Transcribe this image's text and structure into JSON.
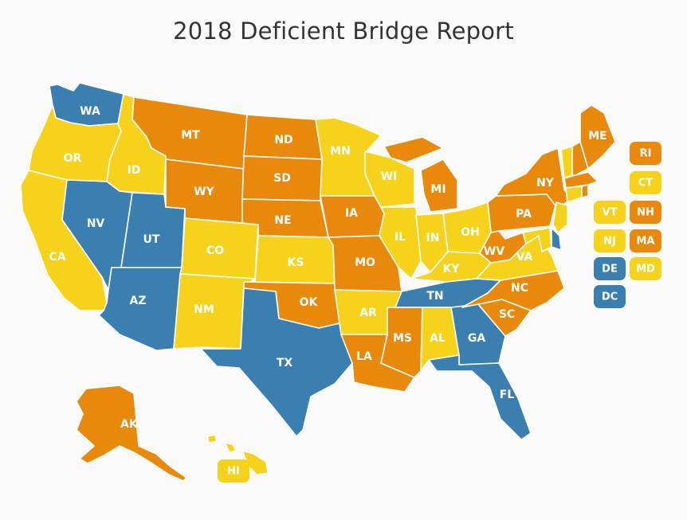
{
  "title": "2018 Deficient Bridge Report",
  "palette": {
    "blue": "#3b7fb0",
    "orange": "#e8890c",
    "yellow": "#f6d31a"
  },
  "states": [
    {
      "code": "WA",
      "color": "blue"
    },
    {
      "code": "OR",
      "color": "yellow"
    },
    {
      "code": "CA",
      "color": "yellow"
    },
    {
      "code": "ID",
      "color": "yellow"
    },
    {
      "code": "NV",
      "color": "blue"
    },
    {
      "code": "UT",
      "color": "blue"
    },
    {
      "code": "AZ",
      "color": "blue"
    },
    {
      "code": "MT",
      "color": "orange"
    },
    {
      "code": "WY",
      "color": "orange"
    },
    {
      "code": "CO",
      "color": "yellow"
    },
    {
      "code": "NM",
      "color": "yellow"
    },
    {
      "code": "ND",
      "color": "orange"
    },
    {
      "code": "SD",
      "color": "orange"
    },
    {
      "code": "NE",
      "color": "orange"
    },
    {
      "code": "KS",
      "color": "yellow"
    },
    {
      "code": "OK",
      "color": "orange"
    },
    {
      "code": "TX",
      "color": "blue"
    },
    {
      "code": "MN",
      "color": "yellow"
    },
    {
      "code": "IA",
      "color": "orange"
    },
    {
      "code": "MO",
      "color": "orange"
    },
    {
      "code": "AR",
      "color": "yellow"
    },
    {
      "code": "LA",
      "color": "orange"
    },
    {
      "code": "WI",
      "color": "yellow"
    },
    {
      "code": "IL",
      "color": "yellow"
    },
    {
      "code": "MI",
      "color": "orange"
    },
    {
      "code": "IN",
      "color": "yellow"
    },
    {
      "code": "OH",
      "color": "yellow"
    },
    {
      "code": "KY",
      "color": "yellow"
    },
    {
      "code": "TN",
      "color": "blue"
    },
    {
      "code": "MS",
      "color": "orange"
    },
    {
      "code": "AL",
      "color": "yellow"
    },
    {
      "code": "GA",
      "color": "blue"
    },
    {
      "code": "FL",
      "color": "blue"
    },
    {
      "code": "SC",
      "color": "orange"
    },
    {
      "code": "NC",
      "color": "orange"
    },
    {
      "code": "VA",
      "color": "yellow"
    },
    {
      "code": "WV",
      "color": "orange"
    },
    {
      "code": "PA",
      "color": "orange"
    },
    {
      "code": "NY",
      "color": "orange"
    },
    {
      "code": "ME",
      "color": "orange"
    },
    {
      "code": "AK",
      "color": "orange"
    },
    {
      "code": "HI",
      "color": "yellow"
    }
  ],
  "legend_chips": [
    {
      "code": "RI",
      "color": "orange"
    },
    {
      "code": "CT",
      "color": "yellow"
    },
    {
      "code": "VT",
      "color": "yellow"
    },
    {
      "code": "NH",
      "color": "orange"
    },
    {
      "code": "NJ",
      "color": "yellow"
    },
    {
      "code": "MA",
      "color": "orange"
    },
    {
      "code": "DE",
      "color": "blue"
    },
    {
      "code": "MD",
      "color": "yellow"
    },
    {
      "code": "DC",
      "color": "blue"
    }
  ]
}
